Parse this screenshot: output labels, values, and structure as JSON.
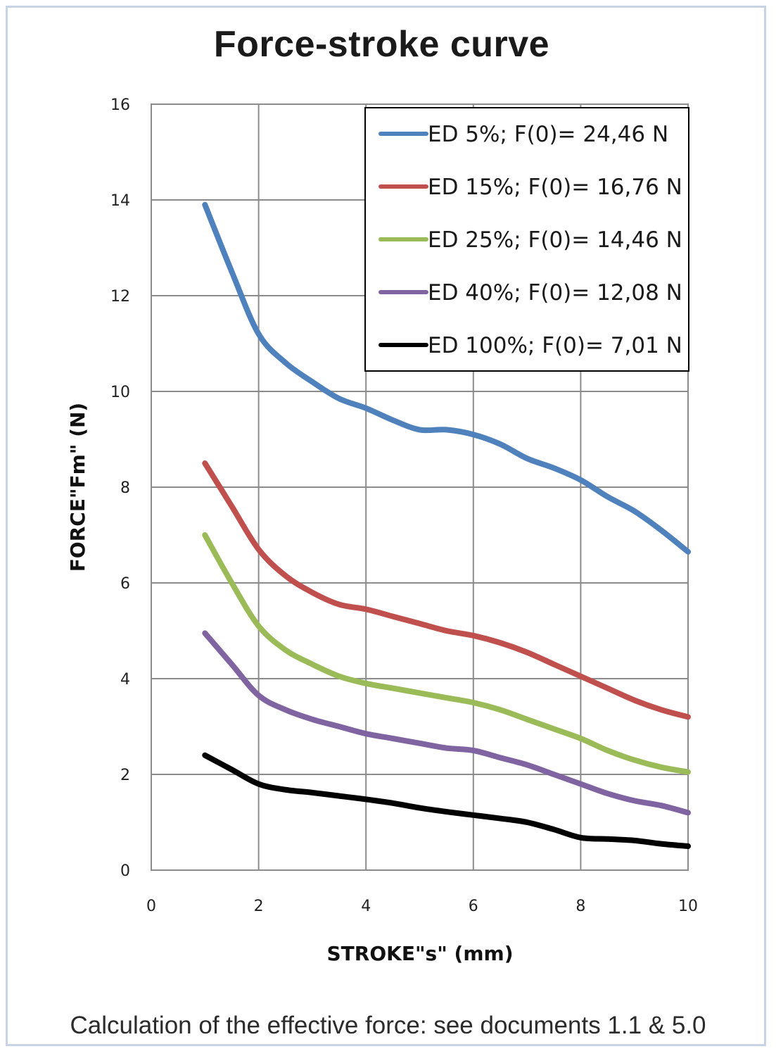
{
  "caption": "Calculation of the effective force: see documents 1.1 & 5.0",
  "chart_data": {
    "type": "line",
    "title": "Force-stroke curve",
    "xlabel": "STROKE\"s\" (mm)",
    "ylabel": "FORCE\"Fm\" (N)",
    "xlim": [
      0,
      10
    ],
    "ylim": [
      0,
      16
    ],
    "xticks": [
      0,
      2,
      4,
      6,
      8,
      10
    ],
    "yticks": [
      0,
      2,
      4,
      6,
      8,
      10,
      12,
      14,
      16
    ],
    "grid": true,
    "legend_position": "top-right",
    "series": [
      {
        "name": "ED 5%; F(0)= 24,46  N",
        "color": "#4f81bd",
        "x": [
          1,
          1.5,
          2,
          2.5,
          3,
          3.5,
          4,
          4.5,
          5,
          5.5,
          6,
          6.5,
          7,
          7.5,
          8,
          8.5,
          9,
          9.5,
          10
        ],
        "y": [
          13.9,
          12.5,
          11.2,
          10.6,
          10.2,
          9.85,
          9.65,
          9.4,
          9.2,
          9.2,
          9.1,
          8.9,
          8.6,
          8.4,
          8.15,
          7.8,
          7.5,
          7.1,
          6.65
        ]
      },
      {
        "name": "ED 15%; F(0)= 16,76 N",
        "color": "#c0504d",
        "x": [
          1,
          1.5,
          2,
          2.5,
          3,
          3.5,
          4,
          4.5,
          5,
          5.5,
          6,
          6.5,
          7,
          7.5,
          8,
          8.5,
          9,
          9.5,
          10
        ],
        "y": [
          8.5,
          7.6,
          6.7,
          6.15,
          5.8,
          5.55,
          5.45,
          5.3,
          5.15,
          5.0,
          4.9,
          4.75,
          4.55,
          4.3,
          4.05,
          3.8,
          3.55,
          3.35,
          3.2
        ]
      },
      {
        "name": "ED 25%; F(0)= 14,46 N",
        "color": "#9bbb59",
        "x": [
          1,
          1.5,
          2,
          2.5,
          3,
          3.5,
          4,
          4.5,
          5,
          5.5,
          6,
          6.5,
          7,
          7.5,
          8,
          8.5,
          9,
          9.5,
          10
        ],
        "y": [
          7.0,
          6.0,
          5.1,
          4.6,
          4.3,
          4.05,
          3.9,
          3.8,
          3.7,
          3.6,
          3.5,
          3.35,
          3.15,
          2.95,
          2.75,
          2.5,
          2.3,
          2.15,
          2.05
        ]
      },
      {
        "name": "ED 40%; F(0)= 12,08 N",
        "color": "#8064a2",
        "x": [
          1,
          1.5,
          2,
          2.5,
          3,
          3.5,
          4,
          4.5,
          5,
          5.5,
          6,
          6.5,
          7,
          7.5,
          8,
          8.5,
          9,
          9.5,
          10
        ],
        "y": [
          4.95,
          4.3,
          3.65,
          3.35,
          3.15,
          3.0,
          2.85,
          2.75,
          2.65,
          2.55,
          2.5,
          2.35,
          2.2,
          2.0,
          1.8,
          1.6,
          1.45,
          1.35,
          1.2
        ]
      },
      {
        "name": "ED 100%; F(0)= 7,01 N",
        "color": "#000000",
        "x": [
          1,
          1.5,
          2,
          2.5,
          3,
          3.5,
          4,
          4.5,
          5,
          5.5,
          6,
          6.5,
          7,
          7.5,
          8,
          8.5,
          9,
          9.5,
          10
        ],
        "y": [
          2.4,
          2.1,
          1.8,
          1.68,
          1.62,
          1.55,
          1.48,
          1.4,
          1.3,
          1.22,
          1.15,
          1.08,
          1.0,
          0.85,
          0.68,
          0.65,
          0.62,
          0.55,
          0.5
        ]
      }
    ]
  }
}
